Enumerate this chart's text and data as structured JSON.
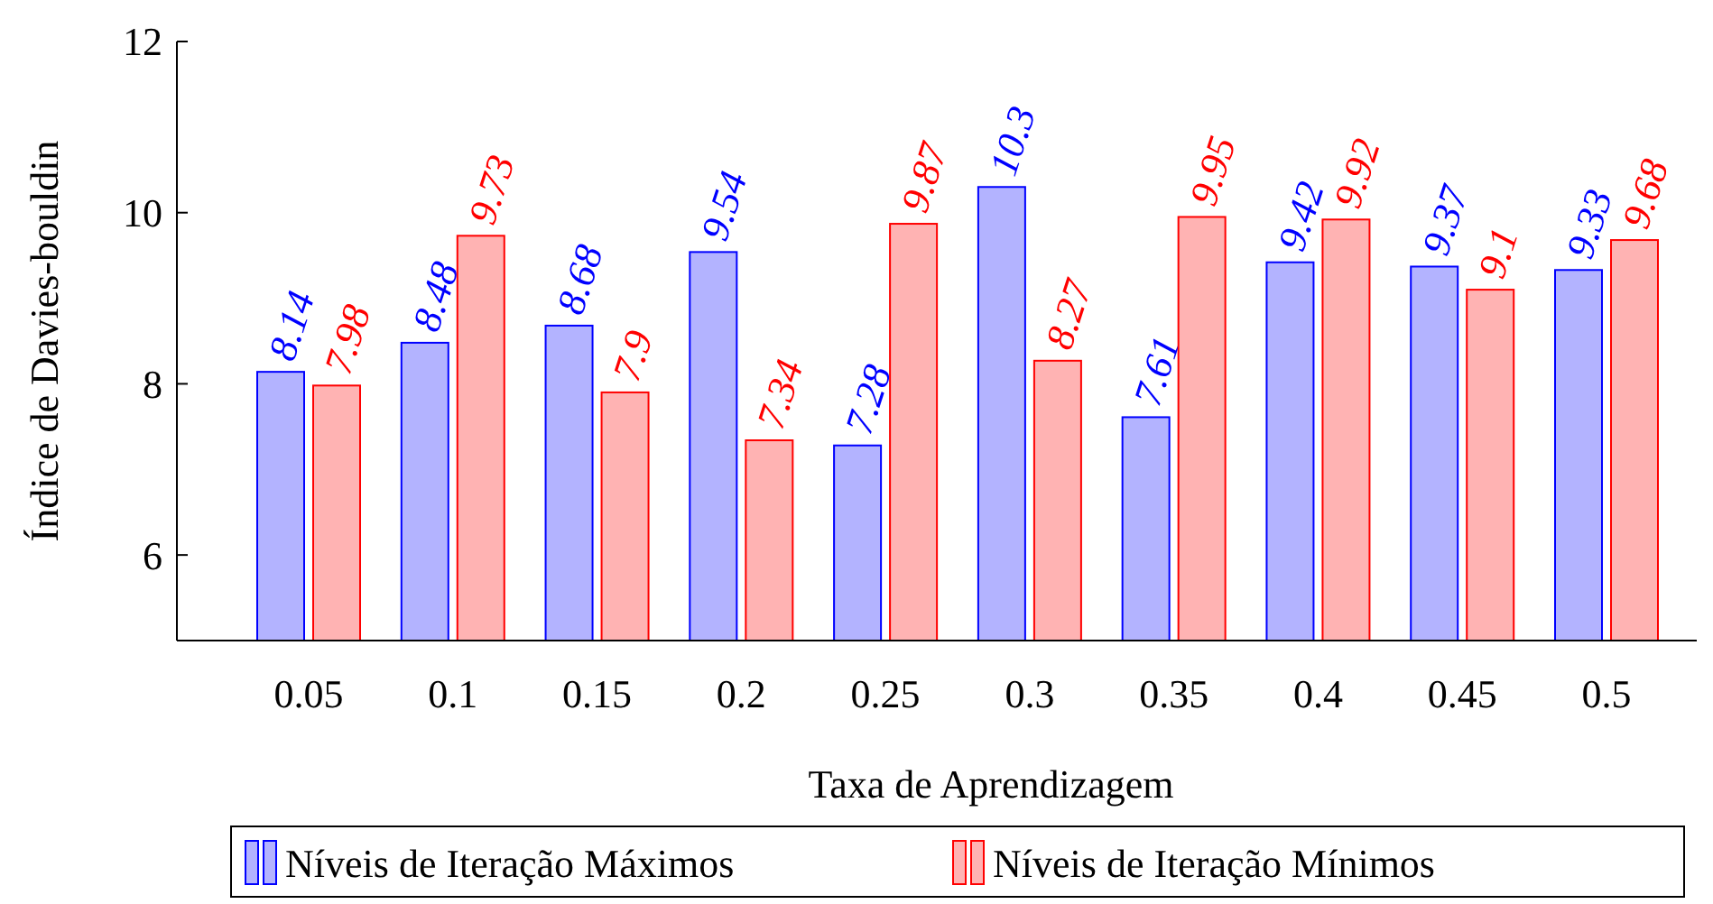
{
  "chart_data": {
    "type": "bar",
    "xlabel": "Taxa de Aprendizagem",
    "ylabel": "Índice de Davies-bouldin",
    "categories": [
      "0.05",
      "0.1",
      "0.15",
      "0.2",
      "0.25",
      "0.3",
      "0.35",
      "0.4",
      "0.45",
      "0.5"
    ],
    "series": [
      {
        "name": "Níveis de Iteração Máximos",
        "color": "#b3b3ff",
        "values": [
          8.14,
          8.48,
          8.68,
          9.54,
          7.28,
          10.3,
          7.61,
          9.42,
          9.37,
          9.33
        ]
      },
      {
        "name": "Níveis de Iteração Mínimos",
        "color": "#ffb3b3",
        "values": [
          7.98,
          9.73,
          7.9,
          7.34,
          9.87,
          8.27,
          9.95,
          9.92,
          9.1,
          9.68
        ]
      }
    ],
    "ylim": [
      5,
      12
    ],
    "yticks": [
      6,
      8,
      10,
      12
    ],
    "data_labels": true,
    "grid": false,
    "legend": "bottom"
  }
}
